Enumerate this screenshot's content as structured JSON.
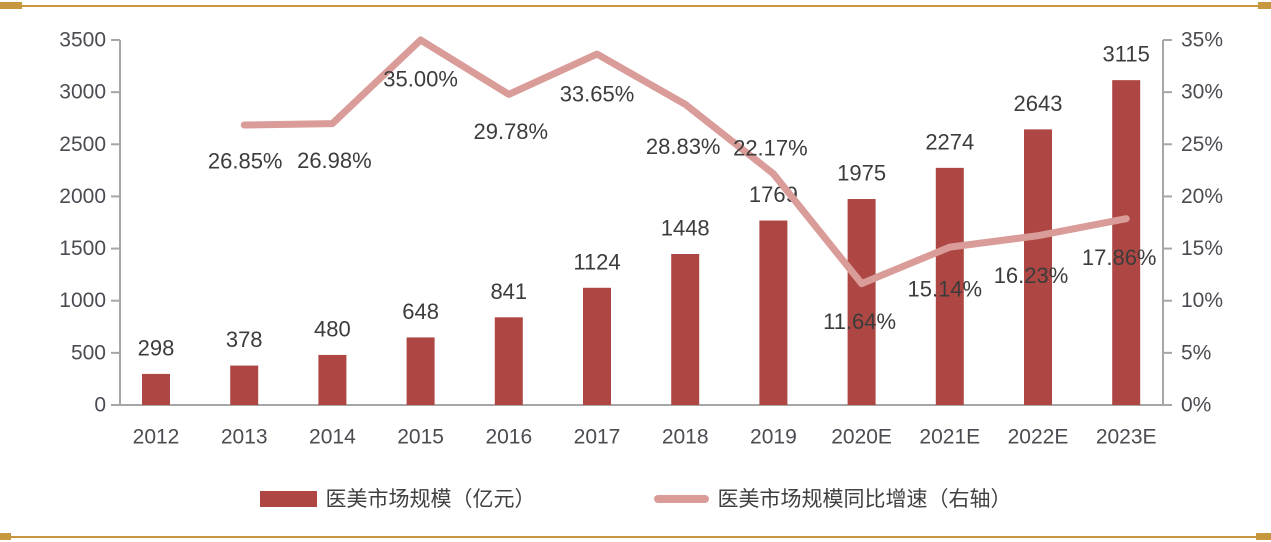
{
  "colors": {
    "bar": "#AE4744",
    "line": "#DA9C99",
    "axis": "#A6A6A6",
    "axis_text": "#4A4C52",
    "label_text": "#3C3C3C",
    "legend_text": "#404040",
    "gold_border": "#C6973F",
    "background": "#FFFFFF"
  },
  "chart_data": {
    "type": "combo-bar-line",
    "categories": [
      "2012",
      "2013",
      "2014",
      "2015",
      "2016",
      "2017",
      "2018",
      "2019",
      "2020E",
      "2021E",
      "2022E",
      "2023E"
    ],
    "series": [
      {
        "name": "医美市场规模（亿元）",
        "type": "bar",
        "axis": "left",
        "values": [
          298,
          378,
          480,
          648,
          841,
          1124,
          1448,
          1769,
          1975,
          2274,
          2643,
          3115
        ],
        "labels": [
          "298",
          "378",
          "480",
          "648",
          "841",
          "1124",
          "1448",
          "1769",
          "1975",
          "2274",
          "2643",
          "3115"
        ]
      },
      {
        "name": "医美市场规模同比增速（右轴）",
        "type": "line",
        "axis": "right",
        "start_category_index": 1,
        "values": [
          26.85,
          26.98,
          35.0,
          29.78,
          33.65,
          28.83,
          22.17,
          11.64,
          15.14,
          16.23,
          17.86
        ],
        "labels": [
          "26.85%",
          "26.98%",
          "35.00%",
          "29.78%",
          "33.65%",
          "28.83%",
          "22.17%",
          "11.64%",
          "15.14%",
          "16.23%",
          "17.86%"
        ]
      }
    ],
    "left_axis": {
      "min": 0,
      "max": 3500,
      "tick_labels": [
        "0",
        "500",
        "1000",
        "1500",
        "2000",
        "2500",
        "3000",
        "3500"
      ]
    },
    "right_axis": {
      "min": 0,
      "max": 35,
      "tick_labels": [
        "0%",
        "5%",
        "10%",
        "15%",
        "20%",
        "25%",
        "30%",
        "35%"
      ]
    },
    "grid": "off",
    "legend_position": "bottom-center"
  }
}
